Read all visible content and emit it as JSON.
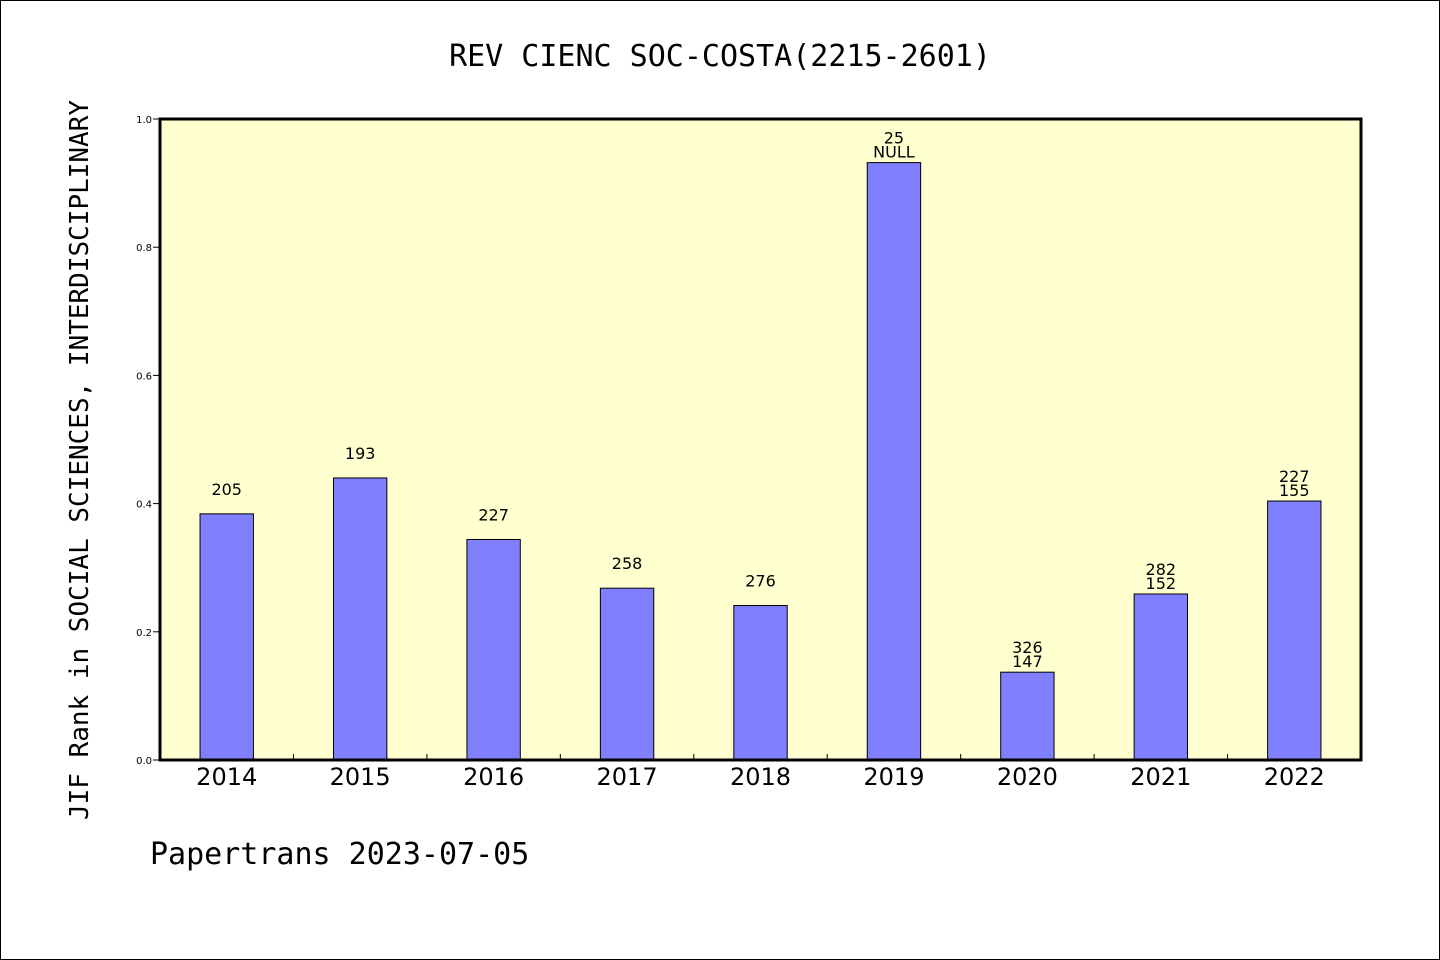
{
  "chart_data": {
    "type": "bar",
    "title": "REV CIENC SOC-COSTA(2215-2601)",
    "ylabel": "JIF Rank in SOCIAL SCIENCES, INTERDISCIPLINARY",
    "xlabel": "",
    "ylim": [
      0,
      1.0
    ],
    "yticks": [
      "0.0",
      "0.2",
      "0.4",
      "0.6",
      "0.8",
      "1.0"
    ],
    "categories": [
      "2014",
      "2015",
      "2016",
      "2017",
      "2018",
      "2019",
      "2020",
      "2021",
      "2022"
    ],
    "values": [
      0.384,
      0.44,
      0.344,
      0.268,
      0.241,
      0.932,
      0.137,
      0.259,
      0.404
    ],
    "labels": [
      [
        "205"
      ],
      [
        "193"
      ],
      [
        "227"
      ],
      [
        "258"
      ],
      [
        "276"
      ],
      [
        "25",
        "NULL"
      ],
      [
        "326",
        "147"
      ],
      [
        "282",
        "152"
      ],
      [
        "227",
        "155"
      ]
    ],
    "plot_background": "#ffffd0",
    "bar_color": "#8080ff",
    "grid": false
  },
  "footer": "Papertrans 2023-07-05"
}
